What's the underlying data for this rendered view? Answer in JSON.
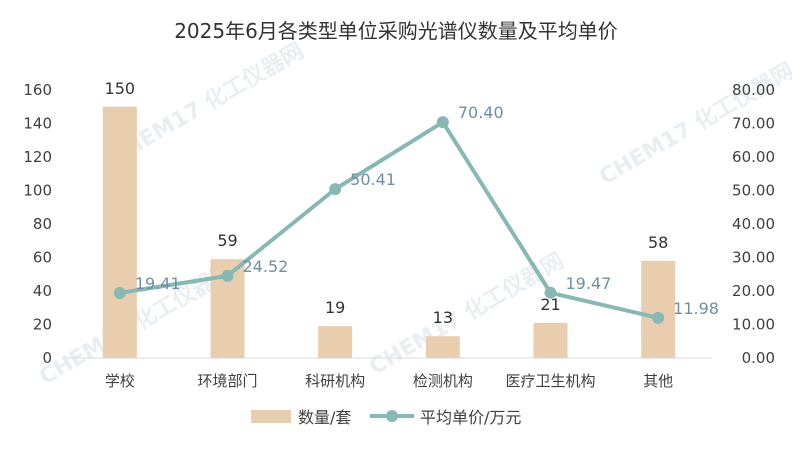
{
  "chart_data": {
    "type": "bar",
    "title": "2025年6月各类型单位采购光谱仪数量及平均单价",
    "categories": [
      "学校",
      "环境部门",
      "科研机构",
      "检测机构",
      "医疗卫生机构",
      "其他"
    ],
    "series": [
      {
        "name": "数量/套",
        "type": "bar",
        "axis": "left",
        "color": "#e8ceae",
        "values": [
          150,
          59,
          19,
          13,
          21,
          58
        ]
      },
      {
        "name": "平均单价/万元",
        "type": "line",
        "axis": "right",
        "color": "#88b8b3",
        "values": [
          19.41,
          24.52,
          50.41,
          70.4,
          19.47,
          11.98
        ]
      }
    ],
    "left_axis": {
      "ylim": [
        0,
        160
      ],
      "ticks": [
        "0",
        "20",
        "40",
        "60",
        "80",
        "100",
        "120",
        "140",
        "160"
      ]
    },
    "right_axis": {
      "ylim": [
        0,
        80
      ],
      "ticks": [
        "0.00",
        "10.00",
        "20.00",
        "30.00",
        "40.00",
        "50.00",
        "60.00",
        "70.00",
        "80.00"
      ]
    },
    "bar_labels": [
      "150",
      "59",
      "19",
      "13",
      "21",
      "58"
    ],
    "line_labels": [
      "19.41",
      "24.52",
      "50.41",
      "70.40",
      "19.47",
      "11.98"
    ],
    "legend_position": "bottom",
    "grid": false
  },
  "watermark": "CHEM17 化工仪器网"
}
